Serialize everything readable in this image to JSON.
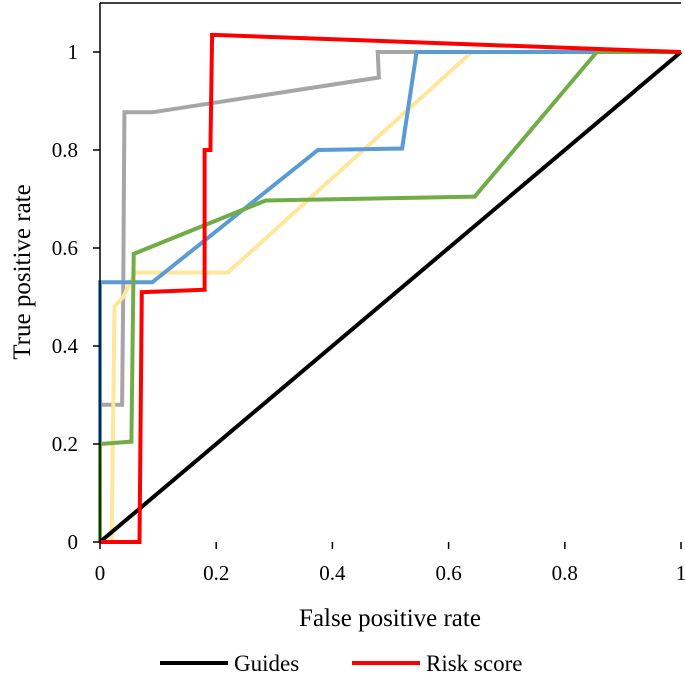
{
  "chart_data": {
    "type": "line",
    "title": "",
    "xlabel": "False positive rate",
    "ylabel": "True positive rate",
    "xlim": [
      0,
      1
    ],
    "ylim": [
      0,
      1.1
    ],
    "x_ticks": [
      0,
      0.2,
      0.4,
      0.6,
      0.8,
      1
    ],
    "x_tick_labels": [
      "0",
      "0.2",
      "0.4",
      "0.6",
      "0.8",
      "1"
    ],
    "y_ticks": [
      0,
      0.2,
      0.4,
      0.6,
      0.8,
      1
    ],
    "y_tick_labels": [
      "0",
      "0.2",
      "0.4",
      "0.6",
      "0.8",
      "1"
    ],
    "legend_position": "bottom",
    "series": [
      {
        "name": "Guides",
        "color": "#000000",
        "in_legend": true,
        "x": [
          0,
          1
        ],
        "y": [
          0,
          1
        ]
      },
      {
        "name": "Risk score",
        "color": "#ff0000",
        "in_legend": true,
        "x": [
          0,
          0.068,
          0.072,
          0.075,
          0.18,
          0.18,
          0.183,
          0.19,
          0.193,
          0.196,
          1
        ],
        "y": [
          0,
          0,
          0.51,
          0.51,
          0.515,
          0.8,
          0.8,
          0.8,
          1.035,
          1.035,
          1
        ]
      },
      {
        "name": "gray",
        "color": "#a6a6a6",
        "in_legend": false,
        "x": [
          0,
          0.038,
          0.04,
          0.042,
          0.09,
          0.48,
          0.478,
          0.48,
          1
        ],
        "y": [
          0.28,
          0.28,
          0.5,
          0.877,
          0.877,
          0.948,
          1,
          1,
          1
        ]
      },
      {
        "name": "yellow",
        "color": "#ffe699",
        "in_legend": false,
        "x": [
          0,
          0.02,
          0.025,
          0.04,
          0.06,
          0.22,
          0.64,
          1
        ],
        "y": [
          0,
          0,
          0.48,
          0.5,
          0.55,
          0.55,
          1,
          1
        ]
      },
      {
        "name": "blue",
        "color": "#5b9bd5",
        "in_legend": false,
        "x": [
          0,
          0,
          0.09,
          0.375,
          0.52,
          0.545,
          1
        ],
        "y": [
          0.2,
          0.53,
          0.53,
          0.8,
          0.803,
          1,
          1
        ]
      },
      {
        "name": "green",
        "color": "#70ad47",
        "in_legend": false,
        "x": [
          0,
          0,
          0.054,
          0.058,
          0.285,
          0.645,
          0.855,
          1
        ],
        "y": [
          0,
          0.2,
          0.205,
          0.588,
          0.697,
          0.705,
          1,
          1
        ]
      }
    ]
  }
}
